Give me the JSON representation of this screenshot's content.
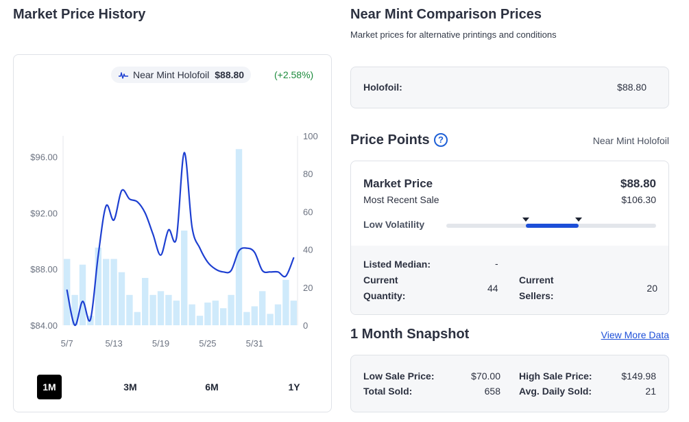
{
  "left_panel": {
    "title": "Market Price History",
    "legend": {
      "name": "Near Mint Holofoil",
      "price": "$88.80",
      "change": "(+2.58%)",
      "icon": "line-chart-icon"
    },
    "ranges": [
      "1M",
      "3M",
      "6M",
      "1Y"
    ],
    "active_range": "1M"
  },
  "chart_data": {
    "type": "line",
    "x_ticks": [
      "5/7",
      "5/13",
      "5/19",
      "5/25",
      "5/31"
    ],
    "y_left_ticks": [
      "$84.00",
      "$88.00",
      "$92.00",
      "$96.00"
    ],
    "y_right_ticks": [
      "0",
      "20",
      "40",
      "60",
      "80",
      "100"
    ],
    "ylim_left": [
      84,
      97.5
    ],
    "ylim_right": [
      0,
      100
    ],
    "price_series": [
      86.5,
      84.0,
      85.7,
      84.4,
      89.0,
      92.5,
      91.5,
      93.6,
      93.0,
      92.8,
      92.0,
      90.5,
      89.0,
      90.8,
      90.2,
      96.3,
      91.0,
      89.5,
      88.5,
      88.0,
      87.8,
      87.9,
      89.3,
      89.5,
      89.2,
      87.9,
      87.8,
      87.8,
      87.5,
      88.8
    ],
    "volume_series": [
      35,
      16,
      32,
      5,
      41,
      35,
      35,
      28,
      16,
      7,
      25,
      16,
      18,
      16,
      13,
      50,
      11,
      5,
      12,
      13,
      9,
      16,
      93,
      7,
      10,
      18,
      6,
      11,
      24,
      13
    ],
    "colors": {
      "line": "#1d3fd1",
      "bars": "#cfeafb"
    }
  },
  "right_panel": {
    "title": "Near Mint Comparison Prices",
    "subtitle": "Market prices for alternative printings and conditions",
    "holofoil": {
      "label": "Holofoil:",
      "value": "$88.80"
    }
  },
  "price_points": {
    "title": "Price Points",
    "variant": "Near Mint Holofoil",
    "market_price_label": "Market Price",
    "market_price_value": "$88.80",
    "recent_sale_label": "Most Recent Sale",
    "recent_sale_value": "$106.30",
    "volatility_label": "Low Volatility",
    "volatility_range": [
      0.38,
      0.63
    ],
    "listed_median_label": "Listed Median:",
    "listed_median_value": "-",
    "current_quantity_label": "Current Quantity:",
    "current_quantity_value": "44",
    "current_sellers_label": "Current Sellers:",
    "current_sellers_value": "20"
  },
  "snapshot": {
    "title": "1 Month Snapshot",
    "view_more": "View More Data",
    "low_sale_label": "Low Sale Price:",
    "low_sale_value": "$70.00",
    "high_sale_label": "High Sale Price:",
    "high_sale_value": "$149.98",
    "total_sold_label": "Total Sold:",
    "total_sold_value": "658",
    "avg_daily_label": "Avg. Daily Sold:",
    "avg_daily_value": "21"
  }
}
